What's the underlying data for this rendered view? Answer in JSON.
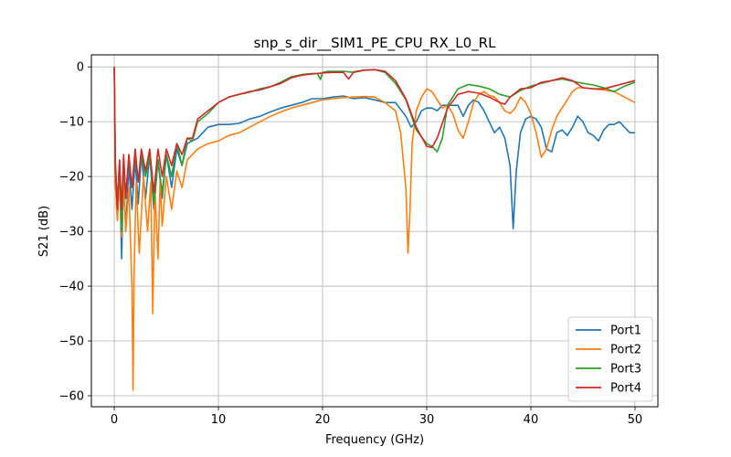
{
  "chart_data": {
    "type": "line",
    "title": "snp_s_dir__SIM1_PE_CPU_RX_L0_RL",
    "xlabel": "Frequency (GHz)",
    "ylabel": "S21 (dB)",
    "xlim": [
      -2.2,
      52.2
    ],
    "ylim": [
      -62,
      2.2
    ],
    "xticks": [
      0,
      10,
      20,
      30,
      40,
      50
    ],
    "yticks": [
      0,
      -10,
      -20,
      -30,
      -40,
      -50,
      -60
    ],
    "xtick_labels": [
      "0",
      "10",
      "20",
      "30",
      "40",
      "50"
    ],
    "ytick_labels": [
      "0",
      "−10",
      "−20",
      "−30",
      "−40",
      "−50",
      "−60"
    ],
    "grid": true,
    "legend_position": "lower-right",
    "series": [
      {
        "name": "Port1",
        "color": "#1f77b4",
        "x": [
          0,
          0.1,
          0.3,
          0.5,
          0.7,
          0.9,
          1.1,
          1.4,
          1.7,
          2.0,
          2.3,
          2.6,
          3.0,
          3.4,
          3.8,
          4.2,
          4.6,
          5.0,
          5.5,
          6.0,
          6.5,
          7.0,
          8.0,
          9.0,
          10.0,
          11.0,
          12.0,
          13.0,
          14.0,
          15.0,
          16.0,
          17.0,
          18.0,
          19.0,
          20.0,
          21.0,
          22.0,
          23.0,
          24.0,
          25.0,
          26.0,
          27.0,
          28.0,
          28.5,
          29.0,
          29.5,
          30.0,
          30.5,
          31.0,
          31.5,
          32.0,
          32.5,
          33.0,
          33.5,
          34.0,
          34.5,
          35.0,
          35.5,
          36.0,
          36.5,
          37.0,
          37.5,
          38.0,
          38.3,
          38.6,
          39.0,
          39.5,
          40.0,
          40.5,
          41.0,
          41.5,
          42.0,
          42.5,
          43.0,
          43.5,
          44.0,
          44.5,
          45.0,
          45.5,
          46.0,
          46.5,
          47.0,
          47.5,
          48.0,
          48.5,
          49.0,
          49.5,
          50.0
        ],
        "y": [
          0,
          -21,
          -28,
          -18,
          -35,
          -19,
          -30,
          -18,
          -26,
          -17,
          -25,
          -16,
          -24,
          -16,
          -26,
          -17,
          -24,
          -16,
          -22,
          -15,
          -18,
          -14,
          -13,
          -11,
          -10.5,
          -10.5,
          -10.3,
          -9.5,
          -9,
          -8.2,
          -7.5,
          -7,
          -6.5,
          -5.8,
          -5.8,
          -5.5,
          -5.3,
          -5.8,
          -5.6,
          -6,
          -6.5,
          -6.5,
          -9,
          -11,
          -10,
          -8,
          -7.5,
          -7.5,
          -8,
          -7,
          -7,
          -7,
          -7,
          -9,
          -7,
          -6,
          -6.5,
          -8,
          -10,
          -12,
          -11,
          -13,
          -18,
          -29.5,
          -19,
          -12,
          -9.5,
          -9,
          -9.5,
          -11,
          -15,
          -15.5,
          -12,
          -11.5,
          -12.5,
          -11,
          -9,
          -10,
          -12,
          -12.5,
          -13.5,
          -11.5,
          -10.5,
          -10.5,
          -10,
          -11,
          -12,
          -12
        ]
      },
      {
        "name": "Port2",
        "color": "#ff7f0e",
        "x": [
          0,
          0.1,
          0.3,
          0.5,
          0.7,
          0.9,
          1.1,
          1.4,
          1.7,
          1.8,
          1.9,
          2.1,
          2.4,
          2.8,
          3.2,
          3.5,
          3.7,
          3.9,
          4.2,
          4.4,
          4.6,
          5.0,
          5.5,
          6.0,
          6.5,
          7.0,
          8.0,
          9.0,
          10.0,
          11.0,
          12.0,
          13.0,
          14.0,
          15.0,
          16.0,
          17.0,
          18.0,
          19.0,
          20.0,
          21.0,
          22.0,
          23.0,
          24.0,
          25.0,
          26.0,
          27.0,
          27.5,
          28.0,
          28.2,
          28.4,
          28.6,
          29.0,
          29.5,
          30.0,
          30.5,
          31.0,
          31.5,
          32.0,
          32.5,
          33.0,
          33.5,
          34.0,
          34.5,
          35.0,
          35.5,
          36.0,
          36.5,
          37.0,
          37.5,
          38.0,
          38.5,
          39.0,
          39.5,
          40.0,
          40.5,
          41.0,
          41.5,
          42.0,
          42.5,
          43.0,
          43.5,
          44.0,
          44.5,
          45.0,
          46.0,
          47.0,
          48.0,
          49.0,
          50.0
        ],
        "y": [
          0,
          -21,
          -28,
          -20,
          -31,
          -21,
          -30,
          -22,
          -40,
          -59,
          -38,
          -21,
          -34,
          -20,
          -30,
          -21,
          -45,
          -22,
          -35,
          -21,
          -29,
          -20,
          -26,
          -19,
          -22,
          -17,
          -15,
          -14,
          -13.5,
          -12.5,
          -12,
          -11,
          -10,
          -9,
          -8.2,
          -7.5,
          -7,
          -6.5,
          -6,
          -5.8,
          -5.6,
          -5.5,
          -5.4,
          -5.5,
          -6.5,
          -8,
          -12,
          -22,
          -34,
          -26,
          -14,
          -8,
          -5.5,
          -4,
          -4.5,
          -6,
          -7.5,
          -7,
          -8.5,
          -11.5,
          -13,
          -10,
          -6.5,
          -5,
          -4.5,
          -5.2,
          -5.5,
          -6.5,
          -8,
          -8.5,
          -7.5,
          -5.5,
          -6.5,
          -8.5,
          -12,
          -16.5,
          -15,
          -11.5,
          -9,
          -7.5,
          -6,
          -4.5,
          -3.8,
          -3.8,
          -4,
          -4.2,
          -4.5,
          -5.5,
          -6.5
        ]
      },
      {
        "name": "Port3",
        "color": "#2ca02c",
        "x": [
          0,
          0.1,
          0.3,
          0.5,
          0.7,
          0.9,
          1.1,
          1.4,
          1.7,
          2.0,
          2.3,
          2.6,
          3.0,
          3.4,
          3.8,
          4.2,
          4.6,
          5.0,
          5.5,
          6.0,
          6.5,
          7.0,
          7.5,
          8.0,
          9.0,
          10.0,
          11.0,
          12.0,
          13.0,
          14.0,
          15.0,
          16.0,
          17.0,
          18.0,
          19.0,
          19.5,
          19.8,
          20.0,
          20.5,
          21.0,
          22.0,
          23.0,
          24.0,
          25.0,
          26.0,
          27.0,
          28.0,
          29.0,
          30.0,
          30.5,
          31.0,
          31.5,
          32.0,
          33.0,
          34.0,
          35.0,
          36.0,
          37.0,
          38.0,
          39.0,
          40.0,
          41.0,
          42.0,
          43.0,
          44.0,
          45.0,
          46.0,
          47.0,
          48.0,
          49.0,
          50.0
        ],
        "y": [
          0,
          -17,
          -25,
          -17,
          -30,
          -18,
          -23,
          -17,
          -22,
          -16,
          -21,
          -16,
          -20,
          -16,
          -25,
          -17,
          -23,
          -16,
          -20,
          -14,
          -18,
          -13,
          -13.5,
          -10,
          -8.5,
          -6.5,
          -5.5,
          -5,
          -4.6,
          -4,
          -3.6,
          -2.8,
          -1.8,
          -1.4,
          -1.2,
          -1.2,
          -2.3,
          -1.0,
          -0.8,
          -0.8,
          -0.8,
          -1.0,
          -0.6,
          -0.5,
          -1.0,
          -3.0,
          -6.0,
          -11.5,
          -14,
          -14.5,
          -15.5,
          -13,
          -7,
          -4,
          -3.2,
          -3.5,
          -4,
          -5,
          -5.5,
          -4.3,
          -3.5,
          -3.0,
          -2.5,
          -2.2,
          -2.6,
          -3.0,
          -3.3,
          -3.8,
          -4.5,
          -3.5,
          -2.8
        ]
      },
      {
        "name": "Port4",
        "color": "#d62728",
        "x": [
          0,
          0.1,
          0.3,
          0.5,
          0.7,
          0.9,
          1.1,
          1.4,
          1.7,
          2.0,
          2.3,
          2.6,
          3.0,
          3.4,
          3.8,
          4.2,
          4.6,
          5.0,
          5.5,
          6.0,
          6.5,
          7.0,
          7.5,
          8.0,
          9.0,
          10.0,
          11.0,
          12.0,
          13.0,
          14.0,
          15.0,
          16.0,
          17.0,
          18.0,
          19.0,
          20.0,
          21.0,
          22.0,
          22.5,
          23.0,
          24.0,
          25.0,
          26.0,
          27.0,
          28.0,
          29.0,
          30.0,
          30.5,
          31.0,
          32.0,
          33.0,
          34.0,
          35.0,
          36.0,
          37.0,
          37.5,
          38.0,
          39.0,
          40.0,
          41.0,
          42.0,
          43.0,
          44.0,
          45.0,
          46.0,
          47.0,
          48.0,
          49.0,
          50.0
        ],
        "y": [
          0,
          -18,
          -26,
          -17,
          -26,
          -16,
          -24,
          -16,
          -22,
          -15,
          -21,
          -15,
          -19,
          -15,
          -23,
          -15,
          -20,
          -15,
          -18,
          -14,
          -16,
          -13,
          -13,
          -9.5,
          -8,
          -6.5,
          -5.5,
          -5,
          -4.5,
          -4.2,
          -3.6,
          -3,
          -2,
          -1.5,
          -1.3,
          -1.1,
          -1.0,
          -1.0,
          -2.2,
          -0.9,
          -0.6,
          -0.5,
          -0.8,
          -2.5,
          -5.8,
          -11,
          -14.5,
          -14.7,
          -13,
          -7.5,
          -5,
          -4.5,
          -4.8,
          -5.5,
          -6.5,
          -6.8,
          -5.5,
          -4.0,
          -3.8,
          -2.8,
          -2.5,
          -2.0,
          -2.5,
          -3.8,
          -4.0,
          -4.0,
          -3.5,
          -3.0,
          -2.5
        ]
      }
    ]
  }
}
